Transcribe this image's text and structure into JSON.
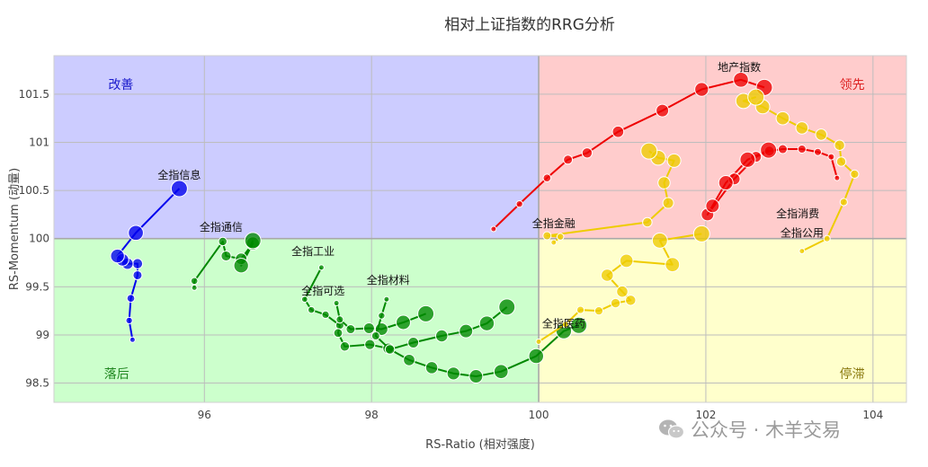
{
  "chart_data": {
    "type": "scatter",
    "title": "相对上证指数的RRG分析",
    "xlabel": "RS-Ratio (相对强度)",
    "ylabel": "RS-Momentum (动量)",
    "xlim": [
      94.2,
      104.4
    ],
    "ylim": [
      98.3,
      101.9
    ],
    "x_ticks": [
      96,
      98,
      100,
      102,
      104
    ],
    "x_tick_labels": [
      "96",
      "98",
      "100",
      "102",
      "104"
    ],
    "y_ticks": [
      98.5,
      99,
      99.5,
      100,
      100.5,
      101,
      101.5
    ],
    "y_tick_labels": [
      "98.5",
      "99",
      "99.5",
      "100",
      "100.5",
      "101",
      "101.5"
    ],
    "grid": true,
    "center": [
      100,
      100
    ],
    "quadrants": [
      {
        "label": "改善",
        "color": "#1a1acc",
        "fill": "#ccccff",
        "x_range": [
          94.2,
          100
        ],
        "y_range": [
          100,
          101.9
        ],
        "label_at": [
          95.0,
          101.6
        ]
      },
      {
        "label": "领先",
        "color": "#dd2222",
        "fill": "#ffcccc",
        "x_range": [
          100,
          104.4
        ],
        "y_range": [
          100,
          101.9
        ],
        "label_at": [
          103.75,
          101.6
        ]
      },
      {
        "label": "落后",
        "color": "#228822",
        "fill": "#ccffcc",
        "x_range": [
          94.2,
          100
        ],
        "y_range": [
          98.3,
          100
        ],
        "label_at": [
          94.95,
          98.6
        ]
      },
      {
        "label": "停滞",
        "color": "#8a7a10",
        "fill": "#ffffcc",
        "x_range": [
          100,
          104.4
        ],
        "y_range": [
          98.3,
          100
        ],
        "label_at": [
          103.75,
          98.6
        ]
      }
    ],
    "series": [
      {
        "name": "全指信息",
        "color": "#0000ee",
        "label_at": [
          95.7,
          100.62
        ],
        "points": [
          [
            95.14,
            98.95
          ],
          [
            95.1,
            99.15
          ],
          [
            95.12,
            99.38
          ],
          [
            95.2,
            99.62
          ],
          [
            95.2,
            99.74
          ],
          [
            95.08,
            99.74
          ],
          [
            95.02,
            99.78
          ],
          [
            94.96,
            99.82
          ],
          [
            95.18,
            100.06
          ],
          [
            95.7,
            100.52
          ]
        ]
      },
      {
        "name": "全指通信",
        "color": "#008800",
        "label_at": [
          96.2,
          100.08
        ],
        "points": [
          [
            95.88,
            99.49
          ],
          [
            95.88,
            99.56
          ],
          [
            96.22,
            99.97
          ],
          [
            96.26,
            99.82
          ],
          [
            96.44,
            99.79
          ],
          [
            96.58,
            99.95
          ],
          [
            96.44,
            99.72
          ],
          [
            96.58,
            99.98
          ]
        ]
      },
      {
        "name": "全指工业",
        "color": "#008800",
        "label_at": [
          97.3,
          99.83
        ],
        "points": [
          [
            97.4,
            99.7
          ],
          [
            97.2,
            99.37
          ],
          [
            97.28,
            99.26
          ],
          [
            97.45,
            99.21
          ],
          [
            97.62,
            99.1
          ],
          [
            97.6,
            99.02
          ],
          [
            97.68,
            98.88
          ],
          [
            97.98,
            98.9
          ],
          [
            98.2,
            98.86
          ],
          [
            98.45,
            98.74
          ],
          [
            98.72,
            98.66
          ],
          [
            98.98,
            98.6
          ],
          [
            99.25,
            98.57
          ],
          [
            99.55,
            98.62
          ],
          [
            99.97,
            98.78
          ],
          [
            100.3,
            99.04
          ],
          [
            100.48,
            99.1
          ]
        ]
      },
      {
        "name": "全指可选",
        "color": "#008800",
        "label_at": [
          97.42,
          99.42
        ],
        "points": [
          [
            97.58,
            99.33
          ],
          [
            97.62,
            99.16
          ],
          [
            97.75,
            99.06
          ],
          [
            97.97,
            99.07
          ],
          [
            98.12,
            99.06
          ],
          [
            98.38,
            99.13
          ],
          [
            98.65,
            99.22
          ]
        ]
      },
      {
        "name": "全指材料",
        "color": "#008800",
        "label_at": [
          98.2,
          99.53
        ],
        "points": [
          [
            98.18,
            99.37
          ],
          [
            98.12,
            99.2
          ],
          [
            98.05,
            98.99
          ],
          [
            98.22,
            98.85
          ],
          [
            98.5,
            98.92
          ],
          [
            98.84,
            98.99
          ],
          [
            99.13,
            99.04
          ],
          [
            99.38,
            99.12
          ],
          [
            99.62,
            99.29
          ]
        ]
      },
      {
        "name": "地产指数",
        "color": "#ee0000",
        "label_at": [
          102.4,
          101.74
        ],
        "points": [
          [
            99.46,
            100.1
          ],
          [
            99.77,
            100.36
          ],
          [
            100.1,
            100.63
          ],
          [
            100.35,
            100.82
          ],
          [
            100.58,
            100.89
          ],
          [
            100.95,
            101.11
          ],
          [
            101.48,
            101.33
          ],
          [
            101.95,
            101.55
          ],
          [
            102.42,
            101.65
          ],
          [
            102.7,
            101.57
          ]
        ]
      },
      {
        "name": "全指消费",
        "color": "#ee0000",
        "label_at": [
          103.1,
          100.22
        ],
        "points": [
          [
            103.57,
            100.63
          ],
          [
            103.5,
            100.85
          ],
          [
            103.34,
            100.9
          ],
          [
            103.15,
            100.93
          ],
          [
            102.92,
            100.93
          ],
          [
            102.76,
            100.91
          ],
          [
            102.6,
            100.85
          ],
          [
            102.34,
            100.62
          ],
          [
            102.02,
            100.25
          ],
          [
            102.08,
            100.34
          ],
          [
            102.24,
            100.58
          ],
          [
            102.5,
            100.82
          ],
          [
            102.75,
            100.92
          ]
        ]
      },
      {
        "name": "全指公用",
        "color": "#eecc00",
        "label_at": [
          103.15,
          100.02
        ],
        "points": [
          [
            103.15,
            99.87
          ],
          [
            103.45,
            100.0
          ],
          [
            103.65,
            100.38
          ],
          [
            103.78,
            100.67
          ],
          [
            103.62,
            100.8
          ],
          [
            103.6,
            100.97
          ],
          [
            103.38,
            101.08
          ],
          [
            103.15,
            101.15
          ],
          [
            102.92,
            101.25
          ],
          [
            102.68,
            101.37
          ],
          [
            102.45,
            101.43
          ],
          [
            102.6,
            101.47
          ]
        ]
      },
      {
        "name": "全指金融",
        "color": "#eecc00",
        "label_at": [
          100.18,
          100.12
        ],
        "points": [
          [
            100.18,
            99.96
          ],
          [
            100.26,
            100.02
          ],
          [
            100.1,
            100.03
          ],
          [
            101.3,
            100.17
          ],
          [
            101.55,
            100.37
          ],
          [
            101.5,
            100.58
          ],
          [
            101.62,
            100.81
          ],
          [
            101.43,
            100.84
          ],
          [
            101.32,
            100.91
          ]
        ]
      },
      {
        "name": "全指医药",
        "color": "#eecc00",
        "label_at": [
          100.3,
          99.08
        ],
        "points": [
          [
            100.0,
            98.93
          ],
          [
            100.32,
            99.11
          ],
          [
            100.5,
            99.26
          ],
          [
            100.72,
            99.25
          ],
          [
            100.92,
            99.33
          ],
          [
            101.1,
            99.36
          ],
          [
            101.0,
            99.45
          ],
          [
            100.82,
            99.62
          ],
          [
            101.05,
            99.77
          ],
          [
            101.6,
            99.73
          ],
          [
            101.45,
            99.98
          ],
          [
            101.95,
            100.05
          ]
        ]
      }
    ]
  },
  "watermark": {
    "text": "公众号 · 木羊交易",
    "icon": "wechat-icon"
  }
}
